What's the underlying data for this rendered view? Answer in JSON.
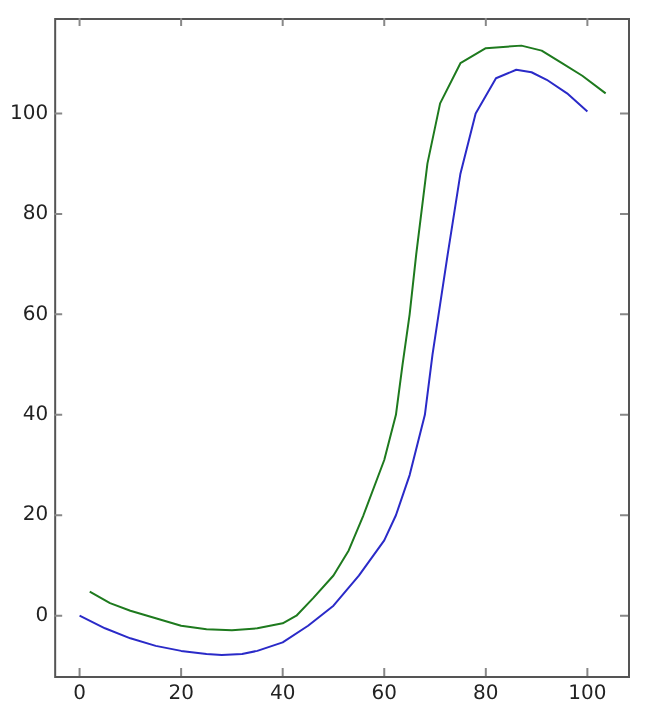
{
  "chart_data": {
    "type": "line",
    "xlim": [
      -5,
      108
    ],
    "ylim": [
      -12,
      119
    ],
    "xticks": [
      0,
      20,
      40,
      60,
      80,
      100
    ],
    "yticks": [
      0,
      20,
      40,
      60,
      80,
      100
    ],
    "grid": false,
    "legend": false,
    "marker": "none",
    "line_style": "solid",
    "series": [
      {
        "color": "#2a2ac8",
        "x": [
          0,
          5,
          10,
          15,
          20,
          25,
          28,
          32,
          35,
          40,
          45,
          50,
          55,
          60,
          62.3,
          65,
          68,
          69.5,
          71,
          72.5,
          75,
          78,
          82,
          86,
          89,
          92,
          96,
          100
        ],
        "values": [
          0,
          -2.5,
          -4.5,
          -6,
          -7,
          -7.6,
          -7.8,
          -7.6,
          -7,
          -5.3,
          -2,
          2,
          8,
          15,
          20,
          28,
          40,
          52,
          62,
          72,
          88,
          100,
          107,
          108.7,
          108.2,
          106.7,
          104,
          100.4
        ]
      },
      {
        "color": "#1e7a1e",
        "x": [
          2,
          6,
          10,
          15,
          20,
          25,
          30,
          35,
          40,
          42.7,
          46,
          50,
          53,
          55.9,
          60,
          62.3,
          63.6,
          65,
          66.3,
          68.5,
          71,
          75,
          80,
          87,
          91,
          95,
          99,
          103.6
        ],
        "values": [
          4.8,
          2.5,
          1,
          -0.5,
          -2,
          -2.7,
          -2.9,
          -2.5,
          -1.5,
          0,
          3.5,
          8,
          13,
          20,
          31,
          40,
          50,
          60,
          72,
          90,
          102,
          110,
          113,
          113.5,
          112.5,
          110,
          107.5,
          104
        ]
      }
    ]
  }
}
